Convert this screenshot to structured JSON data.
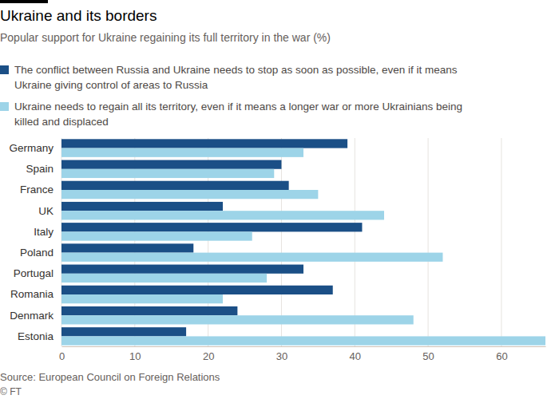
{
  "chart_data": {
    "type": "bar",
    "orientation": "horizontal",
    "title": "Ukraine and its borders",
    "subtitle": "Popular support for Ukraine regaining its full territory in the war (%)",
    "categories": [
      "Germany",
      "Spain",
      "France",
      "UK",
      "Italy",
      "Poland",
      "Portugal",
      "Romania",
      "Denmark",
      "Estonia"
    ],
    "series": [
      {
        "name": "The conflict between Russia and Ukraine needs to stop as soon as possible, even if it means Ukraine giving control of areas to Russia",
        "color": "#1b4f86",
        "values": [
          39,
          30,
          31,
          22,
          41,
          18,
          33,
          37,
          24,
          17
        ]
      },
      {
        "name": "Ukraine needs to regain all its territory, even if it means a longer war or more Ukrainians being killed and displaced",
        "color": "#9dd4e8",
        "values": [
          33,
          29,
          35,
          44,
          26,
          52,
          28,
          22,
          48,
          66
        ]
      }
    ],
    "xlim": [
      0,
      66
    ],
    "xticks": [
      0,
      10,
      20,
      30,
      40,
      50,
      60
    ],
    "grid": true,
    "legend": "top",
    "source": "Source: European Council on Foreign Relations",
    "credit": "© FT"
  }
}
